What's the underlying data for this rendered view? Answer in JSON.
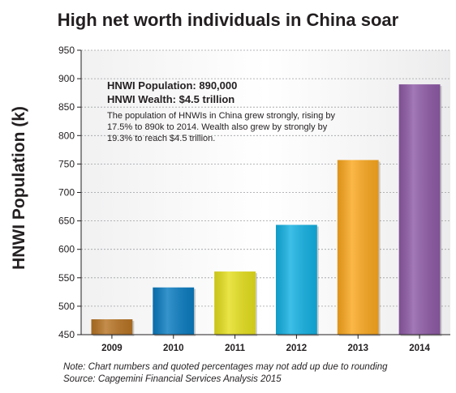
{
  "chart_data": {
    "type": "bar",
    "title": "High net worth individuals in China soar",
    "ylabel": "HNWI Population (k)",
    "xlabel": "",
    "categories": [
      "2009",
      "2010",
      "2011",
      "2012",
      "2013",
      "2014"
    ],
    "values": [
      477,
      533,
      561,
      643,
      757,
      890
    ],
    "colors": [
      "#b87424",
      "#0a7cc1",
      "#e6e01e",
      "#13b1e3",
      "#fba81f",
      "#8f5ba7"
    ],
    "ylim": [
      450,
      950
    ],
    "yticks": [
      450,
      500,
      550,
      600,
      650,
      700,
      750,
      800,
      850,
      900,
      950
    ],
    "grid": true,
    "annotation": {
      "line1": "HNWI Population: 890,000",
      "line2": "HNWI Wealth: $4.5 trillion",
      "body": "The population of HNWIs in China grew strongly, rising by 17.5% to 890k to 2014. Wealth also grew by strongly by 19.3% to reach $4.5 trillion."
    }
  },
  "footnotes": {
    "note": "Note: Chart numbers and quoted percentages may not add up due to rounding",
    "source": "Source: Capgemini Financial Services Analysis 2015"
  }
}
